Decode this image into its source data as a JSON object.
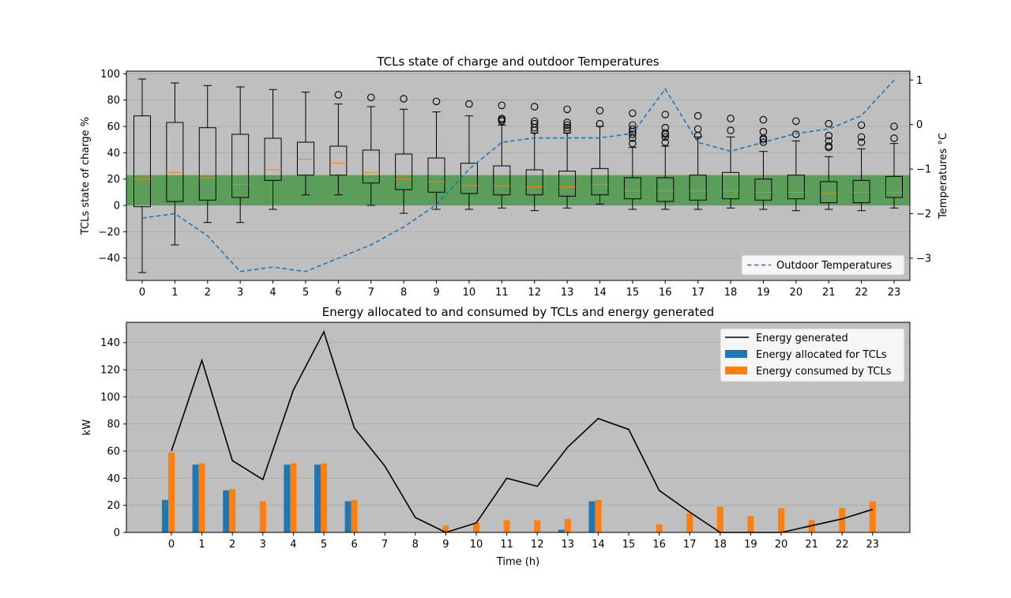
{
  "chart_data": [
    {
      "type": "box",
      "title": "TCLs state of charge and outdoor Temperatures",
      "ylabel": "TCLs state of charge %",
      "y2label": "Temperatures °C",
      "ylim": [
        -57,
        102
      ],
      "y2lim": [
        -3.5,
        1.2
      ],
      "yticks": [
        -40,
        -20,
        0,
        20,
        40,
        60,
        80,
        100
      ],
      "y2ticks": [
        -3,
        -2,
        -1,
        0,
        1
      ],
      "categories": [
        "0",
        "1",
        "2",
        "3",
        "4",
        "5",
        "6",
        "7",
        "8",
        "9",
        "10",
        "11",
        "12",
        "13",
        "14",
        "15",
        "16",
        "17",
        "18",
        "19",
        "20",
        "21",
        "22",
        "23"
      ],
      "band": {
        "from": 0,
        "to": 23,
        "color": "#5a9e5a"
      },
      "boxes": [
        {
          "min": -51,
          "q1": -1,
          "median": 20,
          "q3": 68,
          "max": 96,
          "outliers": []
        },
        {
          "min": -30,
          "q1": 3,
          "median": 25,
          "q3": 63,
          "max": 93,
          "outliers": []
        },
        {
          "min": -13,
          "q1": 4,
          "median": 21,
          "q3": 59,
          "max": 91,
          "outliers": []
        },
        {
          "min": -13,
          "q1": 6,
          "median": 16,
          "q3": 54,
          "max": 90,
          "outliers": []
        },
        {
          "min": -3,
          "q1": 19,
          "median": 27,
          "q3": 51,
          "max": 88,
          "outliers": []
        },
        {
          "min": 8,
          "q1": 23,
          "median": 35,
          "q3": 48,
          "max": 86,
          "outliers": []
        },
        {
          "min": 8,
          "q1": 23,
          "median": 32,
          "q3": 45,
          "max": 77,
          "outliers": [
            84
          ]
        },
        {
          "min": 0,
          "q1": 17,
          "median": 25,
          "q3": 42,
          "max": 75,
          "outliers": [
            82
          ]
        },
        {
          "min": -6,
          "q1": 12,
          "median": 20,
          "q3": 39,
          "max": 73,
          "outliers": [
            81
          ]
        },
        {
          "min": -3,
          "q1": 10,
          "median": 18,
          "q3": 36,
          "max": 71,
          "outliers": [
            79
          ]
        },
        {
          "min": -3,
          "q1": 9,
          "median": 15,
          "q3": 32,
          "max": 68,
          "outliers": [
            77
          ]
        },
        {
          "min": -2,
          "q1": 8,
          "median": 15,
          "q3": 30,
          "max": 61,
          "outliers": [
            64,
            65,
            66,
            76
          ]
        },
        {
          "min": -4,
          "q1": 8,
          "median": 14,
          "q3": 27,
          "max": 55,
          "outliers": [
            57,
            59,
            62,
            64,
            75
          ]
        },
        {
          "min": -2,
          "q1": 7,
          "median": 14,
          "q3": 26,
          "max": 55,
          "outliers": [
            57,
            59,
            61,
            63,
            73
          ]
        },
        {
          "min": 1,
          "q1": 8,
          "median": 16,
          "q3": 28,
          "max": 60,
          "outliers": [
            62,
            72
          ]
        },
        {
          "min": -3,
          "q1": 5,
          "median": 11,
          "q3": 21,
          "max": 44,
          "outliers": [
            47,
            51,
            54,
            56,
            58,
            61,
            70
          ]
        },
        {
          "min": -3,
          "q1": 3,
          "median": 11,
          "q3": 21,
          "max": 45,
          "outliers": [
            48,
            52,
            54,
            55,
            59,
            69
          ]
        },
        {
          "min": -3,
          "q1": 4,
          "median": 11,
          "q3": 23,
          "max": 52,
          "outliers": [
            53,
            58,
            68
          ]
        },
        {
          "min": -2,
          "q1": 5,
          "median": 11,
          "q3": 25,
          "max": 52,
          "outliers": [
            57,
            66
          ]
        },
        {
          "min": -3,
          "q1": 4,
          "median": 10,
          "q3": 20,
          "max": 41,
          "outliers": [
            48,
            50,
            51,
            56,
            65
          ]
        },
        {
          "min": -4,
          "q1": 5,
          "median": 10,
          "q3": 23,
          "max": 49,
          "outliers": [
            54,
            64
          ]
        },
        {
          "min": -3,
          "q1": 2,
          "median": 9,
          "q3": 18,
          "max": 37,
          "outliers": [
            44,
            45,
            49,
            53,
            62
          ]
        },
        {
          "min": -4,
          "q1": 2,
          "median": 10,
          "q3": 19,
          "max": 43,
          "outliers": [
            48,
            52,
            61
          ]
        },
        {
          "min": -2,
          "q1": 6,
          "median": 10,
          "q3": 22,
          "max": 47,
          "outliers": [
            51,
            60
          ]
        }
      ],
      "series": [
        {
          "name": "Outdoor Temperatures",
          "axis": "right",
          "values": [
            -2.1,
            -2.0,
            -2.5,
            -3.3,
            -3.2,
            -3.3,
            -3.0,
            -2.7,
            -2.3,
            -1.8,
            -1.0,
            -0.4,
            -0.3,
            -0.3,
            -0.3,
            -0.2,
            0.8,
            -0.4,
            -0.6,
            -0.4,
            -0.2,
            -0.1,
            0.2,
            1.0
          ]
        }
      ],
      "legend_position": "lower-right",
      "grid": "y"
    },
    {
      "type": "bar",
      "title": "Energy allocated to and consumed by TCLs and energy generated",
      "xlabel": "Time (h)",
      "ylabel": "kW",
      "ylim": [
        0,
        155
      ],
      "yticks": [
        0,
        20,
        40,
        60,
        80,
        100,
        120,
        140
      ],
      "categories": [
        "0",
        "1",
        "2",
        "3",
        "4",
        "5",
        "6",
        "7",
        "8",
        "9",
        "10",
        "11",
        "12",
        "13",
        "14",
        "15",
        "16",
        "17",
        "18",
        "19",
        "20",
        "21",
        "22",
        "23"
      ],
      "series": [
        {
          "name": "Energy generated",
          "type": "line",
          "values": [
            60,
            127,
            53,
            39,
            105,
            148,
            77,
            49,
            11,
            0,
            7,
            40,
            34,
            63,
            84,
            76,
            31,
            15,
            0,
            0,
            0,
            5,
            10,
            17
          ]
        },
        {
          "name": "Energy allocated for TCLs",
          "type": "bar",
          "values": [
            24,
            50,
            31,
            0,
            50,
            50,
            23,
            0,
            0,
            0,
            0,
            0,
            0,
            2,
            23,
            0,
            0,
            0,
            0,
            0,
            0,
            0,
            0,
            0
          ]
        },
        {
          "name": "Energy consumed by TCLs",
          "type": "bar",
          "values": [
            59,
            51,
            32,
            23,
            51,
            51,
            24,
            0,
            0,
            5,
            7,
            9,
            9,
            10,
            24,
            0,
            6,
            14,
            19,
            12,
            18,
            9,
            18,
            23
          ]
        }
      ],
      "legend_position": "upper-right",
      "grid": "y"
    }
  ],
  "colors": {
    "axes_bg": "#bfbfbf",
    "band": "#5a9e5a",
    "allocated": "#1f77b4",
    "consumed": "#ff7f0e",
    "temperature_line": "#1f77b4",
    "generated_line": "#000000",
    "median": "#ff7f0e"
  }
}
